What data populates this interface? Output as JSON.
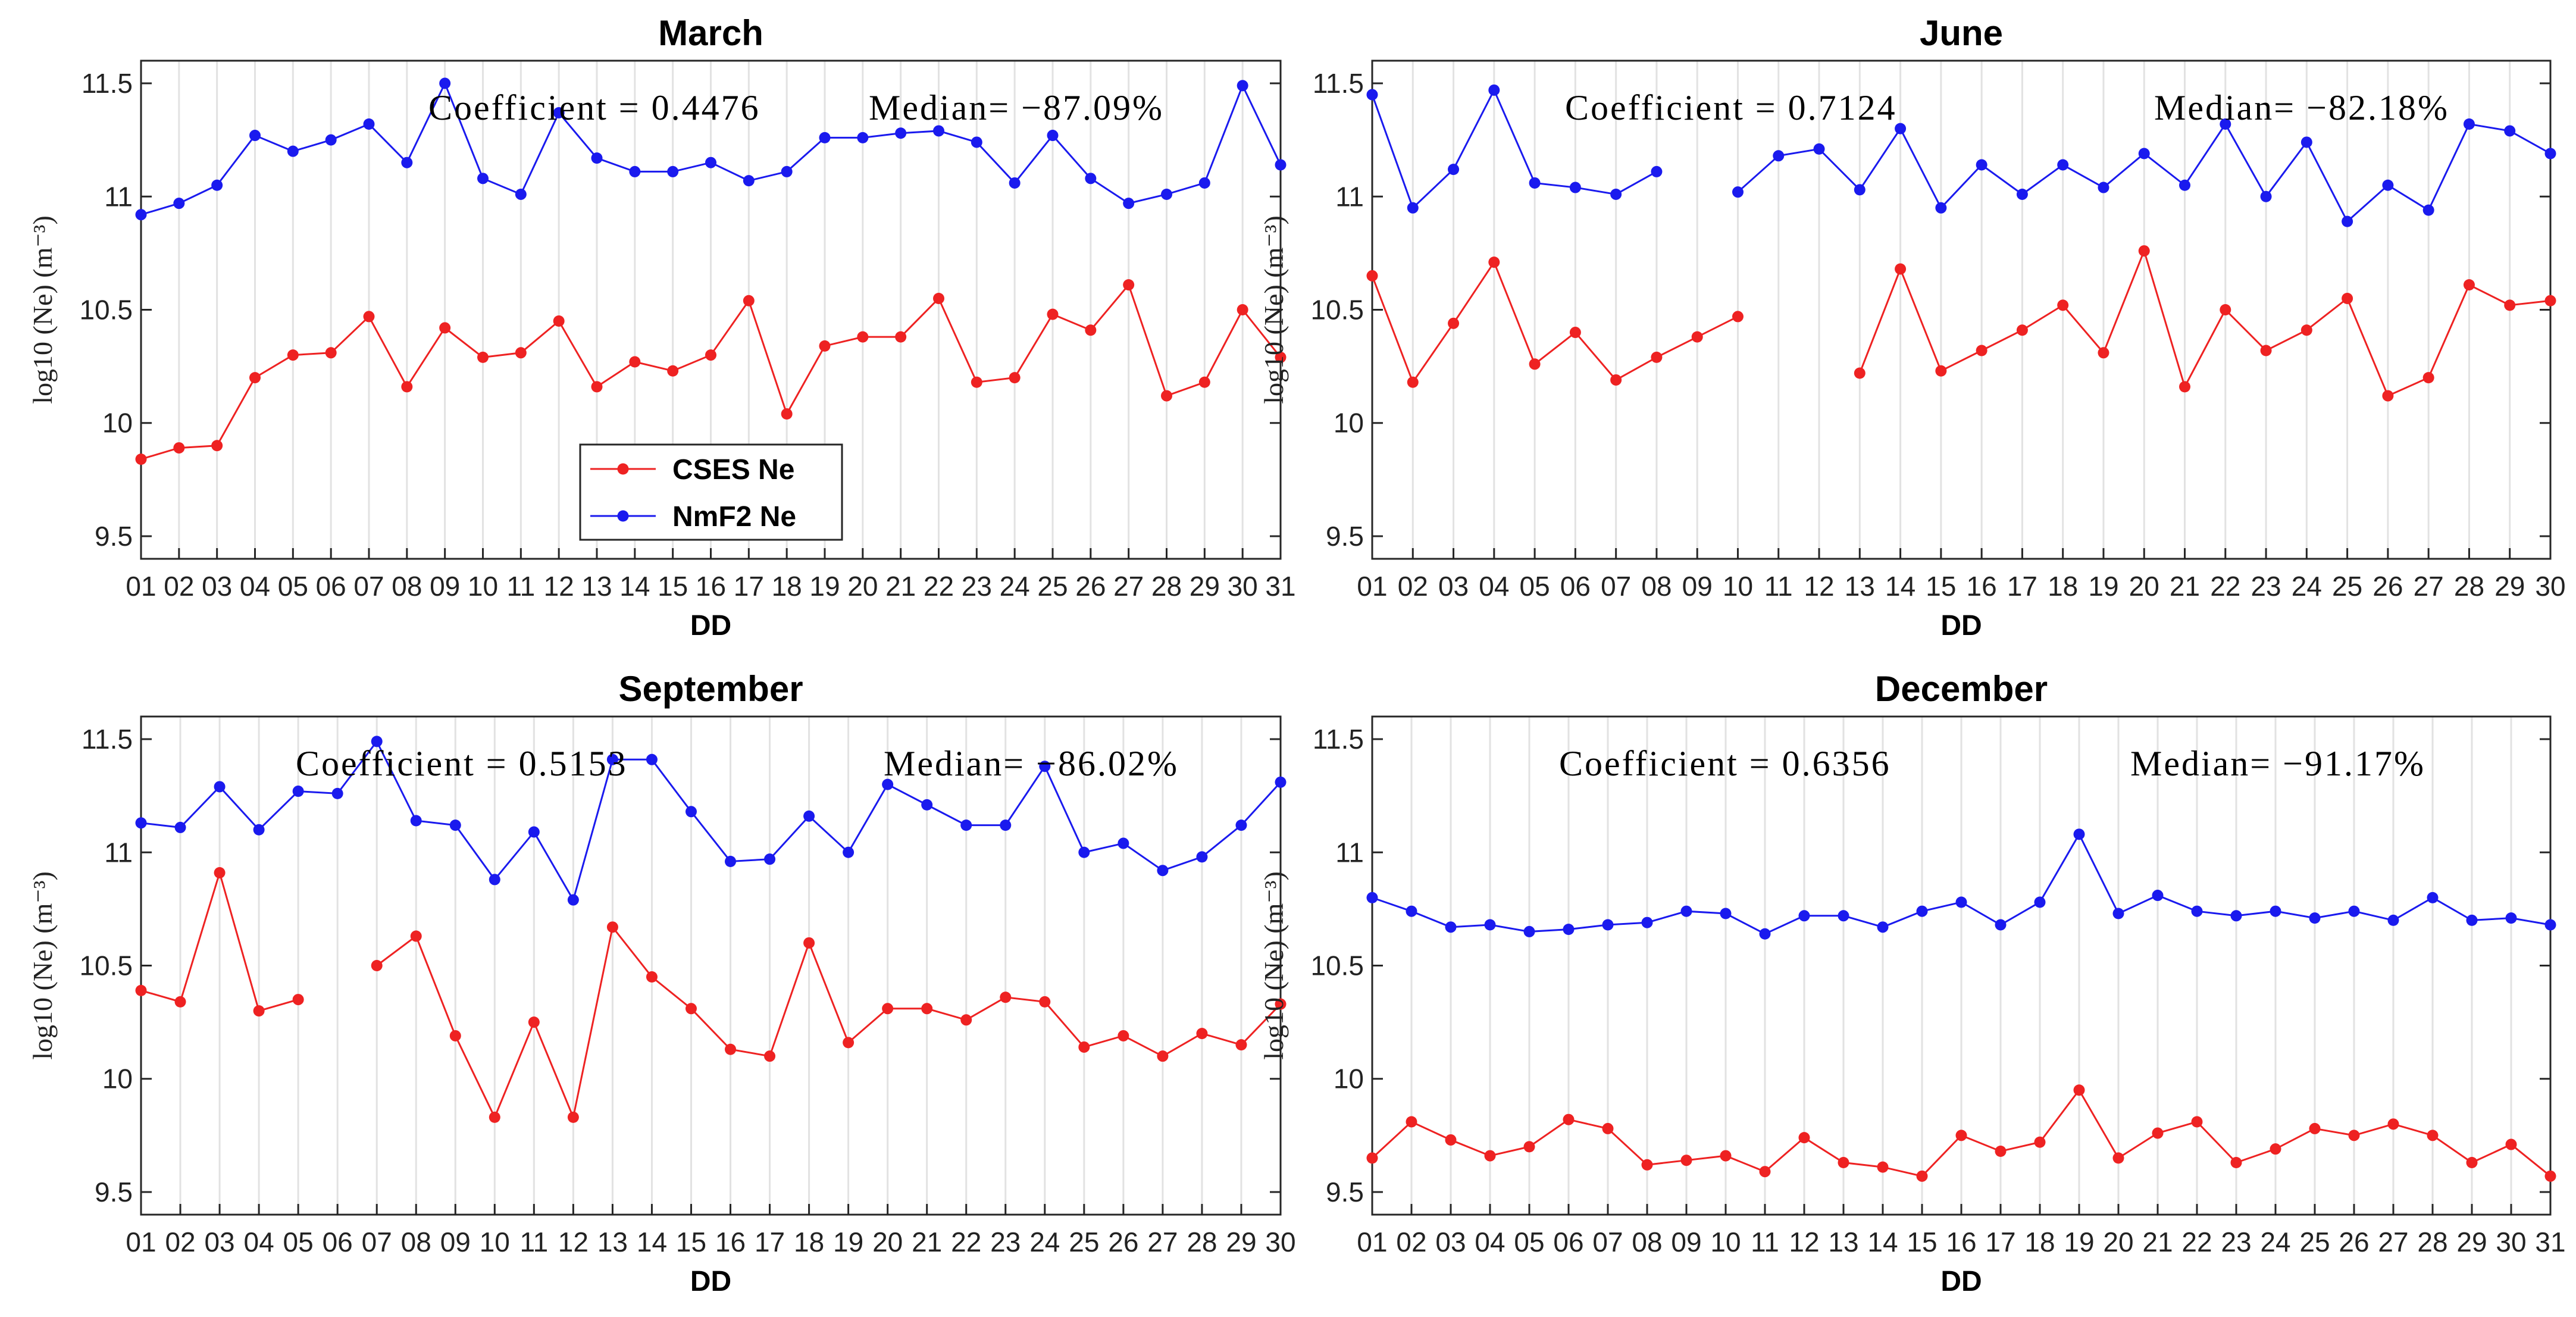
{
  "figure": {
    "series_names": [
      "CSES Ne",
      "NmF2 Ne"
    ],
    "series_colors": [
      "#ee2222",
      "#1a1aee"
    ],
    "ylabel": "log10 (Ne) (m⁻³)",
    "legend_placement": "inside lower-left of March panel"
  },
  "chart_data": [
    {
      "type": "line",
      "title": "March",
      "xlabel": "DD",
      "ylabel": "log10 (Ne) (m⁻³)",
      "ylim": [
        9.4,
        11.6
      ],
      "yticks": [
        9.5,
        10,
        10.5,
        11,
        11.5
      ],
      "ytick_labels": [
        "9.5",
        "10",
        "10.5",
        "11",
        "11.5"
      ],
      "categories": [
        "01",
        "02",
        "03",
        "04",
        "05",
        "06",
        "07",
        "08",
        "09",
        "10",
        "11",
        "12",
        "13",
        "14",
        "15",
        "16",
        "17",
        "18",
        "19",
        "20",
        "21",
        "22",
        "23",
        "24",
        "25",
        "26",
        "27",
        "28",
        "29",
        "30",
        "31"
      ],
      "grid": "vertical",
      "annotation_coef": "Coefficient = 0.4476",
      "annotation_median": "Median= −87.09%",
      "series": [
        {
          "name": "CSES Ne",
          "values": [
            9.84,
            9.89,
            9.9,
            10.2,
            10.3,
            10.31,
            10.47,
            10.16,
            10.42,
            10.29,
            10.31,
            10.45,
            10.16,
            10.27,
            10.23,
            10.3,
            10.54,
            10.04,
            10.34,
            10.38,
            10.38,
            10.55,
            10.18,
            10.2,
            10.48,
            10.41,
            10.61,
            10.12,
            10.18,
            10.5,
            10.29
          ]
        },
        {
          "name": "NmF2 Ne",
          "values": [
            10.92,
            10.97,
            11.05,
            11.27,
            11.2,
            11.25,
            11.32,
            11.15,
            11.5,
            11.08,
            11.01,
            11.37,
            11.17,
            11.11,
            11.11,
            11.15,
            11.07,
            11.11,
            11.26,
            11.26,
            11.28,
            11.29,
            11.24,
            11.06,
            11.27,
            11.08,
            10.97,
            11.01,
            11.06,
            11.49,
            11.14
          ]
        }
      ]
    },
    {
      "type": "line",
      "title": "June",
      "xlabel": "DD",
      "ylabel": "log10 (Ne) (m⁻³)",
      "ylim": [
        9.4,
        11.6
      ],
      "yticks": [
        9.5,
        10,
        10.5,
        11,
        11.5
      ],
      "ytick_labels": [
        "9.5",
        "10",
        "10.5",
        "11",
        "11.5"
      ],
      "categories": [
        "01",
        "02",
        "03",
        "04",
        "05",
        "06",
        "07",
        "08",
        "09",
        "10",
        "11",
        "12",
        "13",
        "14",
        "15",
        "16",
        "17",
        "18",
        "19",
        "20",
        "21",
        "22",
        "23",
        "24",
        "25",
        "26",
        "27",
        "28",
        "29",
        "30"
      ],
      "grid": "vertical",
      "annotation_coef": "Coefficient = 0.7124",
      "annotation_median": "Median= −82.18%",
      "series": [
        {
          "name": "CSES Ne",
          "values": [
            10.65,
            10.18,
            10.44,
            10.71,
            10.26,
            10.4,
            10.19,
            10.29,
            10.38,
            10.47,
            null,
            null,
            10.22,
            10.68,
            10.23,
            10.32,
            10.41,
            10.52,
            10.31,
            10.76,
            10.16,
            10.5,
            10.32,
            10.41,
            10.55,
            10.12,
            10.2,
            10.61,
            10.52,
            10.54
          ]
        },
        {
          "name": "NmF2 Ne",
          "values": [
            11.45,
            10.95,
            11.12,
            11.47,
            11.06,
            11.04,
            11.01,
            11.11,
            null,
            11.02,
            11.18,
            11.21,
            11.03,
            11.3,
            10.95,
            11.14,
            11.01,
            11.14,
            11.04,
            11.19,
            11.05,
            11.32,
            11.0,
            11.24,
            10.89,
            11.05,
            10.94,
            11.32,
            11.29,
            11.19
          ]
        }
      ]
    },
    {
      "type": "line",
      "title": "September",
      "xlabel": "DD",
      "ylabel": "log10 (Ne) (m⁻³)",
      "ylim": [
        9.4,
        11.6
      ],
      "yticks": [
        9.5,
        10,
        10.5,
        11,
        11.5
      ],
      "ytick_labels": [
        "9.5",
        "10",
        "10.5",
        "11",
        "11.5"
      ],
      "categories": [
        "01",
        "02",
        "03",
        "04",
        "05",
        "06",
        "07",
        "08",
        "09",
        "10",
        "11",
        "12",
        "13",
        "14",
        "15",
        "16",
        "17",
        "18",
        "19",
        "20",
        "21",
        "22",
        "23",
        "24",
        "25",
        "26",
        "27",
        "28",
        "29",
        "30"
      ],
      "grid": "vertical",
      "annotation_coef": "Coefficient = 0.5153",
      "annotation_median": "Median= −86.02%",
      "series": [
        {
          "name": "CSES Ne",
          "values": [
            10.39,
            10.34,
            10.91,
            10.3,
            10.35,
            null,
            10.5,
            10.63,
            10.19,
            9.83,
            10.25,
            9.83,
            10.67,
            10.45,
            10.31,
            10.13,
            10.1,
            10.6,
            10.16,
            10.31,
            10.31,
            10.26,
            10.36,
            10.34,
            10.14,
            10.19,
            10.1,
            10.2,
            10.15,
            10.33
          ]
        },
        {
          "name": "NmF2 Ne",
          "values": [
            11.13,
            11.11,
            11.29,
            11.1,
            11.27,
            11.26,
            11.49,
            11.14,
            11.12,
            10.88,
            11.09,
            10.79,
            11.41,
            11.41,
            11.18,
            10.96,
            10.97,
            11.16,
            11.0,
            11.3,
            11.21,
            11.12,
            11.12,
            11.38,
            11.0,
            11.04,
            10.92,
            10.98,
            11.12,
            11.31
          ]
        }
      ]
    },
    {
      "type": "line",
      "title": "December",
      "xlabel": "DD",
      "ylabel": "log10 (Ne) (m⁻³)",
      "ylim": [
        9.4,
        11.6
      ],
      "yticks": [
        9.5,
        10,
        10.5,
        11,
        11.5
      ],
      "ytick_labels": [
        "9.5",
        "10",
        "10.5",
        "11",
        "11.5"
      ],
      "categories": [
        "01",
        "02",
        "03",
        "04",
        "05",
        "06",
        "07",
        "08",
        "09",
        "10",
        "11",
        "12",
        "13",
        "14",
        "15",
        "16",
        "17",
        "18",
        "19",
        "20",
        "21",
        "22",
        "23",
        "24",
        "25",
        "26",
        "27",
        "28",
        "29",
        "30",
        "31"
      ],
      "grid": "vertical",
      "annotation_coef": "Coefficient = 0.6356",
      "annotation_median": "Median= −91.17%",
      "series": [
        {
          "name": "CSES Ne",
          "values": [
            9.65,
            9.81,
            9.73,
            9.66,
            9.7,
            9.82,
            9.78,
            9.62,
            9.64,
            9.66,
            9.59,
            9.74,
            9.63,
            9.61,
            9.57,
            9.75,
            9.68,
            9.72,
            9.95,
            9.65,
            9.76,
            9.81,
            9.63,
            9.69,
            9.78,
            9.75,
            9.8,
            9.75,
            9.63,
            9.71,
            9.57
          ]
        },
        {
          "name": "NmF2 Ne",
          "values": [
            10.8,
            10.74,
            10.67,
            10.68,
            10.65,
            10.66,
            10.68,
            10.69,
            10.74,
            10.73,
            10.64,
            10.72,
            10.72,
            10.67,
            10.74,
            10.78,
            10.68,
            10.78,
            11.08,
            10.73,
            10.81,
            10.74,
            10.72,
            10.74,
            10.71,
            10.74,
            10.7,
            10.8,
            10.7,
            10.71,
            10.68
          ]
        }
      ]
    }
  ]
}
